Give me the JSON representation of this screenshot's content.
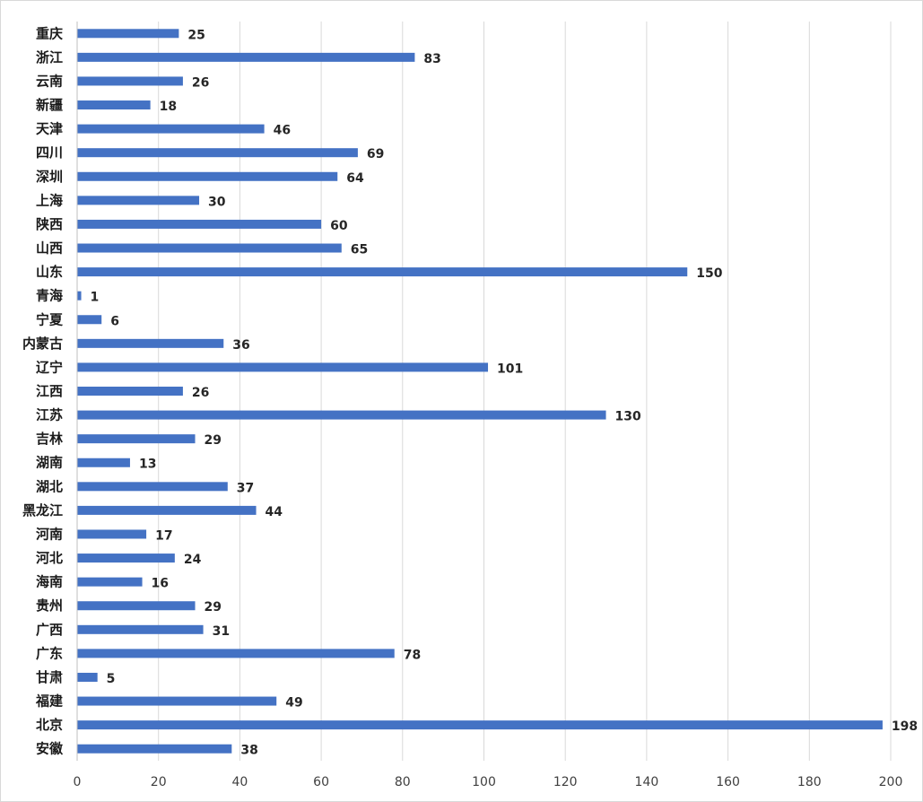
{
  "chart_data": {
    "type": "bar",
    "orientation": "horizontal",
    "title": "",
    "xlabel": "",
    "ylabel": "",
    "categories": [
      "重庆",
      "浙江",
      "云南",
      "新疆",
      "天津",
      "四川",
      "深圳",
      "上海",
      "陕西",
      "山西",
      "山东",
      "青海",
      "宁夏",
      "内蒙古",
      "辽宁",
      "江西",
      "江苏",
      "吉林",
      "湖南",
      "湖北",
      "黑龙江",
      "河南",
      "河北",
      "海南",
      "贵州",
      "广西",
      "广东",
      "甘肃",
      "福建",
      "北京",
      "安徽"
    ],
    "values": [
      25,
      83,
      26,
      18,
      46,
      69,
      64,
      30,
      60,
      65,
      150,
      1,
      6,
      36,
      101,
      26,
      130,
      29,
      13,
      37,
      44,
      17,
      24,
      16,
      29,
      31,
      78,
      5,
      49,
      198,
      38
    ],
    "xlim": [
      0,
      200
    ],
    "xticks": [
      "0",
      "20",
      "40",
      "60",
      "80",
      "100",
      "120",
      "140",
      "160",
      "180",
      "200"
    ],
    "grid": "vertical",
    "legend": "none",
    "data_labels": true,
    "colors": {
      "bar": "#4472c4",
      "grid": "#d9d9d9",
      "axis": "#bfbfbf"
    }
  }
}
